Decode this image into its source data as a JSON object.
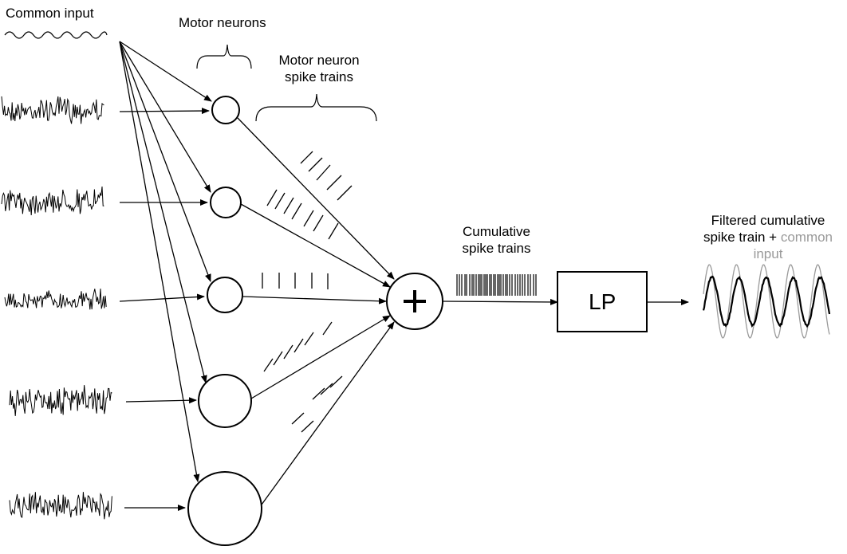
{
  "labels": {
    "common_input": "Common input",
    "motor_neurons": "Motor neurons",
    "spike_trains_line1": "Motor neuron",
    "spike_trains_line2": "spike trains",
    "cumulative_line1": "Cumulative",
    "cumulative_line2": "spike trains",
    "lp": "LP",
    "sum_symbol": "+",
    "filtered_line1": "Filtered cumulative",
    "filtered_line2_black": "spike train + ",
    "filtered_line2_grey": "common",
    "filtered_line3_grey": "input"
  },
  "colors": {
    "stroke": "#000000",
    "common_input_trace": "#9a9a9a",
    "background": "#ffffff"
  }
}
